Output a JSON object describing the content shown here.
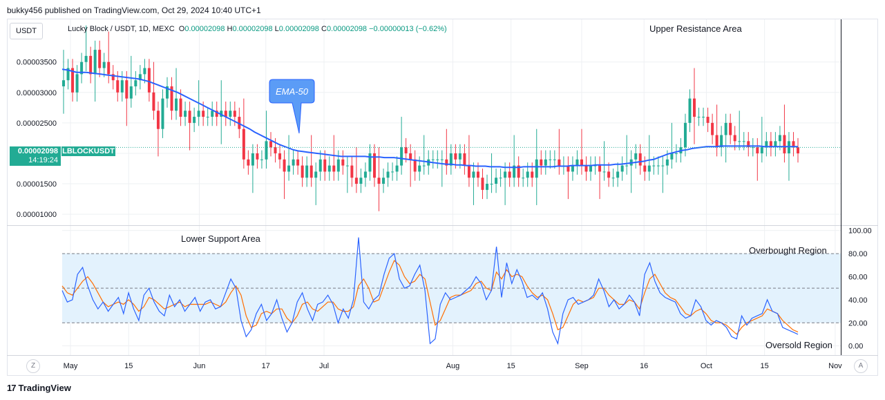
{
  "topbar": {
    "text": "bukky456 published on TradingView.com, Oct 29, 2024 10:40 UTC+1"
  },
  "currency_button": "USDT",
  "legend": {
    "symbol": "Lucky Block / USDT, 1D, MEXC",
    "o_key": "O",
    "o_val": "0.00002098",
    "h_key": "H",
    "h_val": "0.00002098",
    "l_key": "L",
    "l_val": "0.00002098",
    "c_key": "C",
    "c_val": "0.00002098",
    "change": "−0.00000013 (−0.62%)"
  },
  "price_label": {
    "price": "0.00002098",
    "countdown": "14:19:24",
    "ticker": "LBLOCKUSDT"
  },
  "annotations": {
    "upper_resistance": "Upper Resistance Area",
    "ema_label": "EMA-50",
    "lower_support": "Lower Support Area",
    "overbought": "Overbought Region",
    "oversold": "Oversold Region"
  },
  "buttons": {
    "z": "Z",
    "a": "A"
  },
  "footer": {
    "logo": "17",
    "brand": "TradingView"
  },
  "colors": {
    "up": "#22ab94",
    "down": "#f23645",
    "ema": "#2962ff",
    "stoch_k": "#2962ff",
    "stoch_d": "#ff6d00",
    "band": "#e3f2fd",
    "grid": "#eef0f3"
  },
  "chart_data": {
    "type": "candlestick",
    "price_axis": {
      "ticks": [
        3.5e-05,
        3e-05,
        2.5e-05,
        2e-05,
        1.5e-05,
        1e-05
      ],
      "tick_labels": [
        "0.00003500",
        "0.00003000",
        "0.00002500",
        "",
        "0.00001500",
        "0.00001000"
      ],
      "ylim": [
        8.2e-06,
        4.2e-05
      ]
    },
    "osc_axis": {
      "ticks": [
        100,
        80,
        60,
        40,
        20,
        0
      ],
      "tick_labels": [
        "100.00",
        "80.00",
        "60.00",
        "40.00",
        "20.00",
        "0.00"
      ],
      "ylim": [
        -8,
        104
      ],
      "band": [
        20,
        80
      ],
      "dashed_levels": [
        80,
        50,
        20
      ]
    },
    "x_axis": {
      "start_date": "2024-04-29",
      "end_date": "2024-11-07",
      "ticks": [
        {
          "date": "2024-05-01",
          "label": "May"
        },
        {
          "date": "2024-05-15",
          "label": "15"
        },
        {
          "date": "2024-06-01",
          "label": "Jun"
        },
        {
          "date": "2024-06-17",
          "label": "17"
        },
        {
          "date": "2024-07-01",
          "label": "Jul"
        },
        {
          "date": "2024-08-01",
          "label": "Aug"
        },
        {
          "date": "2024-08-15",
          "label": "15"
        },
        {
          "date": "2024-09-01",
          "label": "Sep"
        },
        {
          "date": "2024-09-16",
          "label": "16"
        },
        {
          "date": "2024-10-01",
          "label": "Oct"
        },
        {
          "date": "2024-10-15",
          "label": "15"
        },
        {
          "date": "2024-11-01",
          "label": "Nov"
        }
      ]
    },
    "candle_close": [
      3.2,
      3.4,
      3.0,
      3.3,
      3.5,
      3.6,
      3.3,
      3.7,
      3.4,
      3.5,
      3.3,
      3.2,
      3.0,
      3.2,
      2.9,
      3.1,
      3.2,
      3.3,
      3.4,
      3.0,
      2.7,
      2.4,
      2.9,
      3.1,
      2.7,
      2.9,
      2.6,
      2.7,
      2.5,
      2.6,
      2.7,
      2.6,
      2.6,
      2.7,
      2.6,
      2.7,
      2.6,
      2.7,
      2.6,
      2.4,
      1.9,
      1.8,
      2.0,
      1.9,
      1.9,
      2.2,
      2.1,
      2.0,
      1.9,
      1.7,
      1.8,
      1.9,
      1.8,
      1.6,
      1.8,
      1.6,
      1.7,
      1.9,
      1.7,
      1.8,
      1.7,
      1.9,
      1.8,
      1.8,
      1.6,
      1.5,
      1.6,
      1.7,
      2.0,
      1.6,
      1.5,
      1.6,
      1.7,
      1.7,
      1.8,
      2.1,
      2.0,
      1.9,
      1.7,
      1.8,
      1.8,
      1.9,
      1.9,
      1.9,
      1.9,
      1.8,
      2.0,
      1.9,
      2.0,
      1.8,
      1.6,
      1.7,
      1.6,
      1.4,
      1.5,
      1.5,
      1.6,
      1.6,
      1.7,
      1.6,
      1.8,
      1.6,
      1.6,
      1.7,
      1.6,
      1.9,
      1.8,
      1.9,
      1.9,
      1.9,
      1.8,
      1.8,
      1.7,
      1.8,
      1.9,
      1.8,
      1.7,
      1.8,
      1.8,
      1.7,
      1.7,
      1.6,
      1.6,
      1.7,
      1.8,
      1.8,
      1.9,
      2.0,
      1.8,
      1.7,
      1.8,
      1.8,
      1.8,
      1.8,
      1.9,
      2.0,
      2.0,
      2.1,
      2.5,
      2.9,
      2.6,
      2.6,
      2.6,
      2.5,
      2.3,
      2.1,
      2.3,
      2.5,
      2.3,
      2.2,
      2.2,
      2.2,
      2.1,
      2.1,
      2.0,
      2.1,
      2.2,
      2.1,
      2.2,
      2.3,
      2.0,
      2.2,
      2.1,
      2.0
    ],
    "ema50": [
      3.38,
      3.37,
      3.35,
      3.33,
      3.33,
      3.33,
      3.32,
      3.31,
      3.3,
      3.29,
      3.28,
      3.27,
      3.26,
      3.25,
      3.24,
      3.23,
      3.22,
      3.2,
      3.18,
      3.15,
      3.12,
      3.09,
      3.06,
      3.03,
      3.0,
      2.96,
      2.92,
      2.88,
      2.84,
      2.8,
      2.76,
      2.72,
      2.68,
      2.64,
      2.6,
      2.56,
      2.52,
      2.48,
      2.44,
      2.4,
      2.35,
      2.31,
      2.27,
      2.23,
      2.19,
      2.15,
      2.12,
      2.09,
      2.06,
      2.04,
      2.03,
      2.02,
      2.01,
      2.0,
      1.99,
      1.98,
      1.97,
      1.96,
      1.95,
      1.95,
      1.95,
      1.95,
      1.95,
      1.95,
      1.94,
      1.94,
      1.94,
      1.93,
      1.93,
      1.93,
      1.92,
      1.91,
      1.9,
      1.89,
      1.88,
      1.87,
      1.86,
      1.85,
      1.84,
      1.83,
      1.82,
      1.82,
      1.81,
      1.81,
      1.8,
      1.8,
      1.79,
      1.79,
      1.79,
      1.78,
      1.78,
      1.78,
      1.77,
      1.77,
      1.77,
      1.77,
      1.78,
      1.78,
      1.78,
      1.78,
      1.78,
      1.78,
      1.78,
      1.79,
      1.79,
      1.79,
      1.8,
      1.8,
      1.8,
      1.8,
      1.8,
      1.81,
      1.81,
      1.81,
      1.81,
      1.82,
      1.82,
      1.83,
      1.84,
      1.85,
      1.86,
      1.87,
      1.89,
      1.9,
      1.93,
      1.96,
      1.99,
      2.01,
      2.03,
      2.05,
      2.06,
      2.08,
      2.09,
      2.1,
      2.11,
      2.11,
      2.11,
      2.12,
      2.12,
      2.12,
      2.12,
      2.12,
      2.12,
      2.12,
      2.12,
      2.12,
      2.11,
      2.11,
      2.11,
      2.11,
      2.11,
      2.11,
      2.11,
      2.11
    ],
    "stoch_k": [
      48,
      38,
      40,
      62,
      68,
      52,
      40,
      32,
      38,
      30,
      36,
      42,
      28,
      46,
      32,
      22,
      44,
      50,
      38,
      30,
      26,
      44,
      34,
      40,
      30,
      36,
      42,
      30,
      38,
      40,
      32,
      34,
      46,
      58,
      50,
      22,
      8,
      14,
      28,
      36,
      22,
      28,
      40,
      24,
      12,
      20,
      38,
      46,
      32,
      22,
      36,
      38,
      44,
      36,
      20,
      32,
      24,
      40,
      94,
      38,
      32,
      40,
      44,
      62,
      76,
      80,
      58,
      50,
      52,
      62,
      70,
      48,
      2,
      6,
      36,
      46,
      40,
      42,
      44,
      48,
      52,
      60,
      54,
      40,
      48,
      86,
      42,
      72,
      54,
      66,
      56,
      42,
      44,
      40,
      46,
      32,
      12,
      2,
      28,
      40,
      42,
      36,
      38,
      40,
      44,
      58,
      48,
      34,
      40,
      32,
      36,
      44,
      38,
      26,
      62,
      72,
      56,
      46,
      42,
      40,
      38,
      28,
      24,
      26,
      40,
      34,
      22,
      18,
      22,
      20,
      16,
      8,
      6,
      26,
      18,
      24,
      26,
      28,
      40,
      30,
      28,
      16,
      14,
      12,
      10
    ],
    "stoch_d": [
      52,
      46,
      44,
      50,
      56,
      60,
      54,
      46,
      38,
      34,
      36,
      38,
      36,
      40,
      36,
      30,
      34,
      42,
      40,
      36,
      32,
      34,
      36,
      38,
      34,
      36,
      36,
      36,
      36,
      38,
      36,
      34,
      38,
      46,
      52,
      44,
      26,
      16,
      18,
      28,
      30,
      28,
      32,
      32,
      24,
      20,
      26,
      36,
      38,
      32,
      30,
      34,
      38,
      38,
      32,
      30,
      30,
      34,
      52,
      58,
      50,
      38,
      40,
      52,
      64,
      74,
      70,
      60,
      54,
      56,
      62,
      58,
      38,
      18,
      22,
      32,
      42,
      44,
      44,
      46,
      48,
      54,
      56,
      50,
      48,
      64,
      58,
      66,
      60,
      62,
      60,
      52,
      46,
      42,
      44,
      40,
      28,
      14,
      16,
      26,
      36,
      40,
      38,
      40,
      42,
      50,
      50,
      44,
      40,
      36,
      36,
      40,
      38,
      32,
      46,
      58,
      62,
      54,
      46,
      42,
      40,
      34,
      28,
      26,
      30,
      32,
      28,
      22,
      20,
      20,
      18,
      14,
      10,
      16,
      20,
      22,
      24,
      26,
      32,
      30,
      28,
      22,
      18,
      14,
      12
    ]
  }
}
